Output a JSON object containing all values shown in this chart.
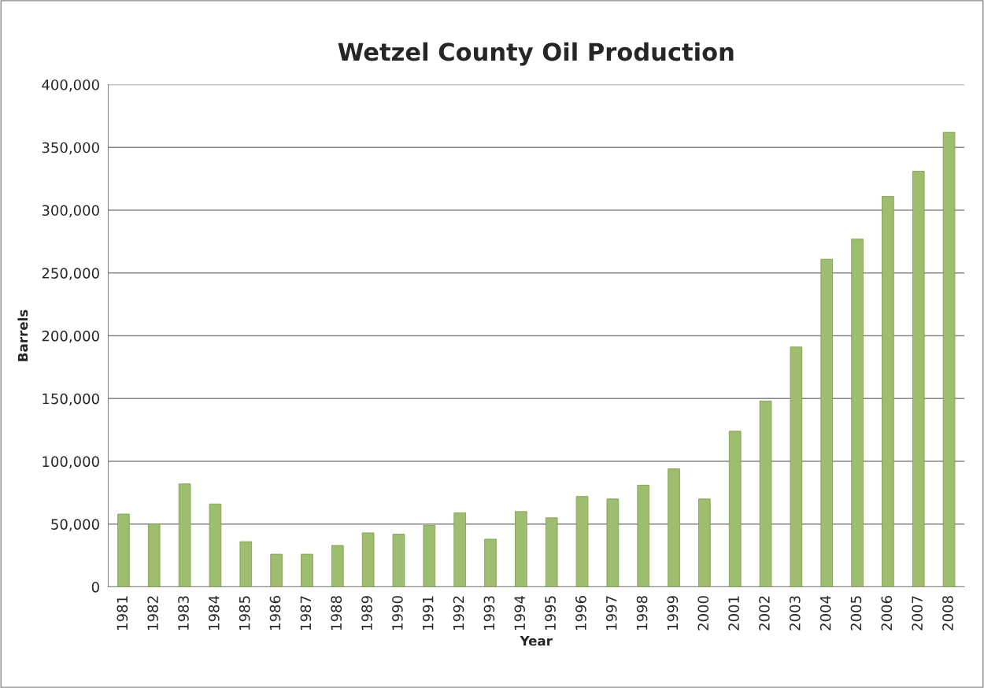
{
  "chart_data": {
    "type": "bar",
    "title": "Wetzel County Oil Production",
    "xlabel": "Year",
    "ylabel": "Barrels",
    "categories": [
      "1981",
      "1982",
      "1983",
      "1984",
      "1985",
      "1986",
      "1987",
      "1988",
      "1989",
      "1990",
      "1991",
      "1992",
      "1993",
      "1994",
      "1995",
      "1996",
      "1997",
      "1998",
      "1999",
      "2000",
      "2001",
      "2002",
      "2003",
      "2004",
      "2005",
      "2006",
      "2007",
      "2008"
    ],
    "values": [
      58000,
      50000,
      82000,
      66000,
      36000,
      26000,
      26000,
      33000,
      43000,
      42000,
      49000,
      59000,
      38000,
      60000,
      55000,
      72000,
      70000,
      81000,
      94000,
      70000,
      124000,
      148000,
      191000,
      261000,
      277000,
      311000,
      331000,
      362000
    ],
    "color": "#9fbd6e",
    "ylim": [
      0,
      400000
    ],
    "yticks": [
      {
        "value": 0,
        "label": "0"
      },
      {
        "value": 50000,
        "label": "50,000"
      },
      {
        "value": 100000,
        "label": "100,000"
      },
      {
        "value": 150000,
        "label": "150,000"
      },
      {
        "value": 200000,
        "label": "200,000"
      },
      {
        "value": 250000,
        "label": "250,000"
      },
      {
        "value": 300000,
        "label": "300,000"
      },
      {
        "value": 350000,
        "label": "350,000"
      },
      {
        "value": 400000,
        "label": "400,000"
      }
    ],
    "grid": "y",
    "legend": false
  }
}
